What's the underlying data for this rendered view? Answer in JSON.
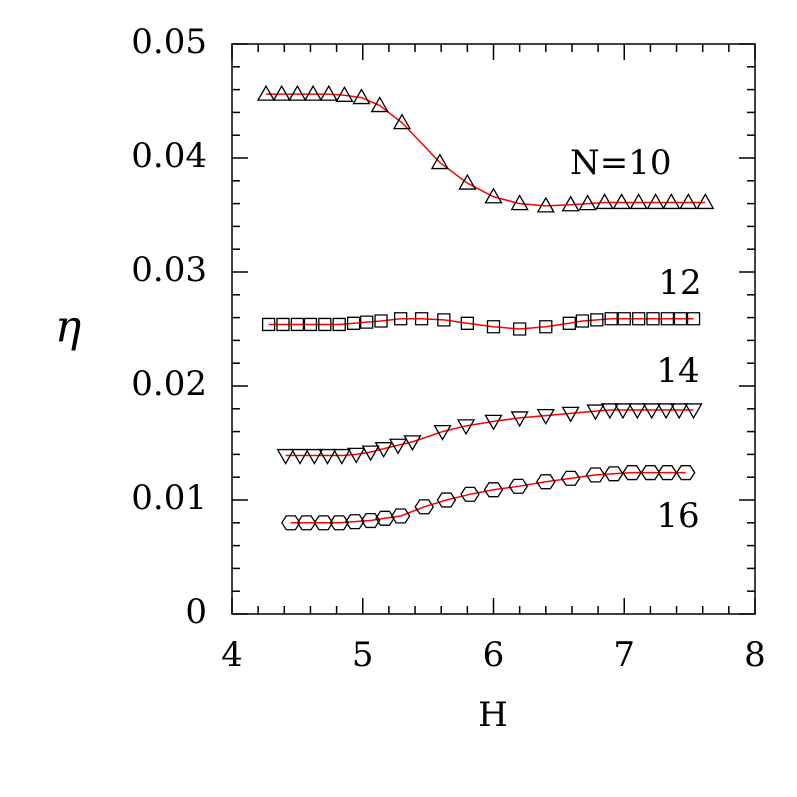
{
  "chart_data": {
    "type": "scatter",
    "xlabel": "H",
    "ylabel": "η",
    "xlim": [
      4,
      8
    ],
    "ylim": [
      0,
      0.05
    ],
    "xticks": [
      4,
      5,
      6,
      7,
      8
    ],
    "yticks": [
      0,
      0.01,
      0.02,
      0.03,
      0.04,
      0.05
    ],
    "fit_color": "#ff0000",
    "series": [
      {
        "name": "N=10",
        "color": "#000000",
        "marker": "triangle-up",
        "x": [
          4.26,
          4.38,
          4.5,
          4.62,
          4.74,
          4.86,
          4.99,
          5.13,
          5.3,
          5.59,
          5.8,
          6.0,
          6.2,
          6.4,
          6.59,
          6.72,
          6.85,
          6.98,
          7.11,
          7.24,
          7.36,
          7.49,
          7.62
        ],
        "values": [
          0.0456,
          0.0456,
          0.0456,
          0.0456,
          0.0456,
          0.0455,
          0.0453,
          0.0446,
          0.0431,
          0.0396,
          0.0378,
          0.0366,
          0.036,
          0.0358,
          0.0359,
          0.036,
          0.0361,
          0.0361,
          0.0361,
          0.0361,
          0.0361,
          0.0361,
          0.0361
        ]
      },
      {
        "name": "12",
        "color": "#000000",
        "marker": "square",
        "x": [
          4.28,
          4.39,
          4.5,
          4.6,
          4.71,
          4.82,
          4.93,
          5.03,
          5.14,
          5.29,
          5.45,
          5.62,
          5.8,
          6.0,
          6.2,
          6.4,
          6.58,
          6.68,
          6.79,
          6.9,
          7.0,
          7.11,
          7.22,
          7.33,
          7.43,
          7.53
        ],
        "values": [
          0.0254,
          0.0254,
          0.0254,
          0.0254,
          0.0254,
          0.0254,
          0.0255,
          0.0256,
          0.0257,
          0.0259,
          0.0259,
          0.0258,
          0.0255,
          0.0252,
          0.025,
          0.0252,
          0.0255,
          0.0257,
          0.0258,
          0.0259,
          0.0259,
          0.0259,
          0.0259,
          0.0259,
          0.0259,
          0.0259
        ]
      },
      {
        "name": "14",
        "color": "#000000",
        "marker": "triangle-down",
        "x": [
          4.41,
          4.52,
          4.63,
          4.73,
          4.84,
          4.95,
          5.06,
          5.16,
          5.27,
          5.38,
          5.61,
          5.79,
          6.0,
          6.2,
          6.4,
          6.59,
          6.78,
          6.89,
          6.99,
          7.1,
          7.21,
          7.32,
          7.42,
          7.53
        ],
        "values": [
          0.0139,
          0.0139,
          0.0139,
          0.0139,
          0.0139,
          0.014,
          0.0142,
          0.0145,
          0.0148,
          0.0151,
          0.016,
          0.0165,
          0.0169,
          0.0172,
          0.0174,
          0.0176,
          0.0178,
          0.0179,
          0.0179,
          0.0179,
          0.0179,
          0.0179,
          0.0179,
          0.0179
        ]
      },
      {
        "name": "16",
        "color": "#000000",
        "marker": "hexagon",
        "x": [
          4.45,
          4.57,
          4.7,
          4.82,
          4.94,
          5.06,
          5.17,
          5.29,
          5.47,
          5.64,
          5.82,
          6.0,
          6.19,
          6.4,
          6.59,
          6.78,
          6.92,
          7.06,
          7.2,
          7.33,
          7.47
        ],
        "values": [
          0.008,
          0.008,
          0.008,
          0.008,
          0.0081,
          0.0082,
          0.0084,
          0.0086,
          0.0094,
          0.01,
          0.0105,
          0.0109,
          0.0112,
          0.0116,
          0.0119,
          0.0122,
          0.0123,
          0.0124,
          0.0124,
          0.0124,
          0.0124
        ]
      }
    ]
  }
}
